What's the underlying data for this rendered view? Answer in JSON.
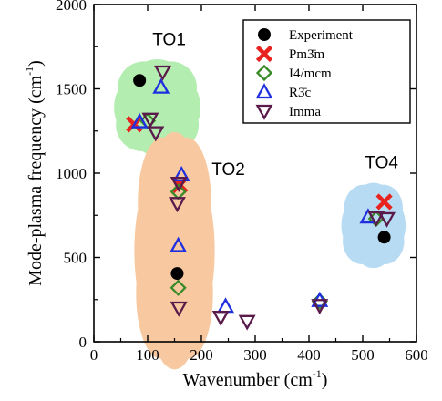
{
  "chart_data": {
    "type": "scatter",
    "xlabel_main": "Wavenumber (cm",
    "xlabel_sup": "-1",
    "xlabel_end": ")",
    "ylabel_main": "Mode-plasma frequency (cm",
    "ylabel_sup": "-1",
    "ylabel_end": ")",
    "xlim": [
      0,
      600
    ],
    "ylim": [
      0,
      2000
    ],
    "x_ticks": [
      0,
      100,
      200,
      300,
      400,
      500,
      600
    ],
    "y_ticks": [
      0,
      500,
      1000,
      1500,
      2000
    ],
    "grid": false,
    "legend_position": "top-right",
    "legend": [
      {
        "label": "Experiment",
        "marker": "circle",
        "color": "#000000"
      },
      {
        "label": "Pm3̄m",
        "marker": "x",
        "color": "#e8231f"
      },
      {
        "label": "I4/mcm",
        "marker": "diamond",
        "color": "#3a8a2a"
      },
      {
        "label": "R3̄c",
        "marker": "triangle-up",
        "color": "#1f2fe0"
      },
      {
        "label": "Imma",
        "marker": "triangle-down",
        "color": "#5a1a4a"
      }
    ],
    "group_labels": [
      {
        "text": "TO1",
        "x": 140,
        "y": 1760
      },
      {
        "text": "TO2",
        "x": 250,
        "y": 990
      },
      {
        "text": "TO4",
        "x": 535,
        "y": 1030
      }
    ],
    "clouds": [
      {
        "name": "TO1",
        "color": "#b3edb0",
        "cx": 118,
        "cy": 1390,
        "rx": 70,
        "ry": 260
      },
      {
        "name": "TO2",
        "color": "#f8c9a0",
        "cx": 150,
        "cy": 540,
        "rx": 65,
        "ry": 640
      },
      {
        "name": "TO4",
        "color": "#b7dbf2",
        "cx": 520,
        "cy": 690,
        "rx": 52,
        "ry": 230
      }
    ],
    "series": [
      {
        "name": "Experiment",
        "marker": "circle",
        "color": "#000000",
        "points": [
          [
            85,
            1550
          ],
          [
            155,
            405
          ],
          [
            540,
            620
          ]
        ]
      },
      {
        "name": "Pm3̄m",
        "marker": "x",
        "color": "#e8231f",
        "points": [
          [
            75,
            1290
          ],
          [
            160,
            930
          ],
          [
            540,
            830
          ]
        ]
      },
      {
        "name": "I4/mcm",
        "marker": "diamond",
        "color": "#3a8a2a",
        "points": [
          [
            100,
            1310
          ],
          [
            157,
            890
          ],
          [
            157,
            320
          ],
          [
            420,
            240
          ],
          [
            525,
            730
          ]
        ]
      },
      {
        "name": "R3̄c",
        "marker": "triangle-up",
        "color": "#1f2fe0",
        "points": [
          [
            85,
            1305
          ],
          [
            125,
            1510
          ],
          [
            163,
            990
          ],
          [
            157,
            570
          ],
          [
            245,
            210
          ],
          [
            420,
            245
          ],
          [
            510,
            740
          ]
        ]
      },
      {
        "name": "Imma",
        "marker": "triangle-down",
        "color": "#5a1a4a",
        "points": [
          [
            105,
            1320
          ],
          [
            128,
            1600
          ],
          [
            115,
            1240
          ],
          [
            158,
            940
          ],
          [
            155,
            820
          ],
          [
            158,
            200
          ],
          [
            236,
            145
          ],
          [
            285,
            120
          ],
          [
            420,
            215
          ],
          [
            525,
            735
          ],
          [
            545,
            730
          ]
        ]
      }
    ]
  }
}
